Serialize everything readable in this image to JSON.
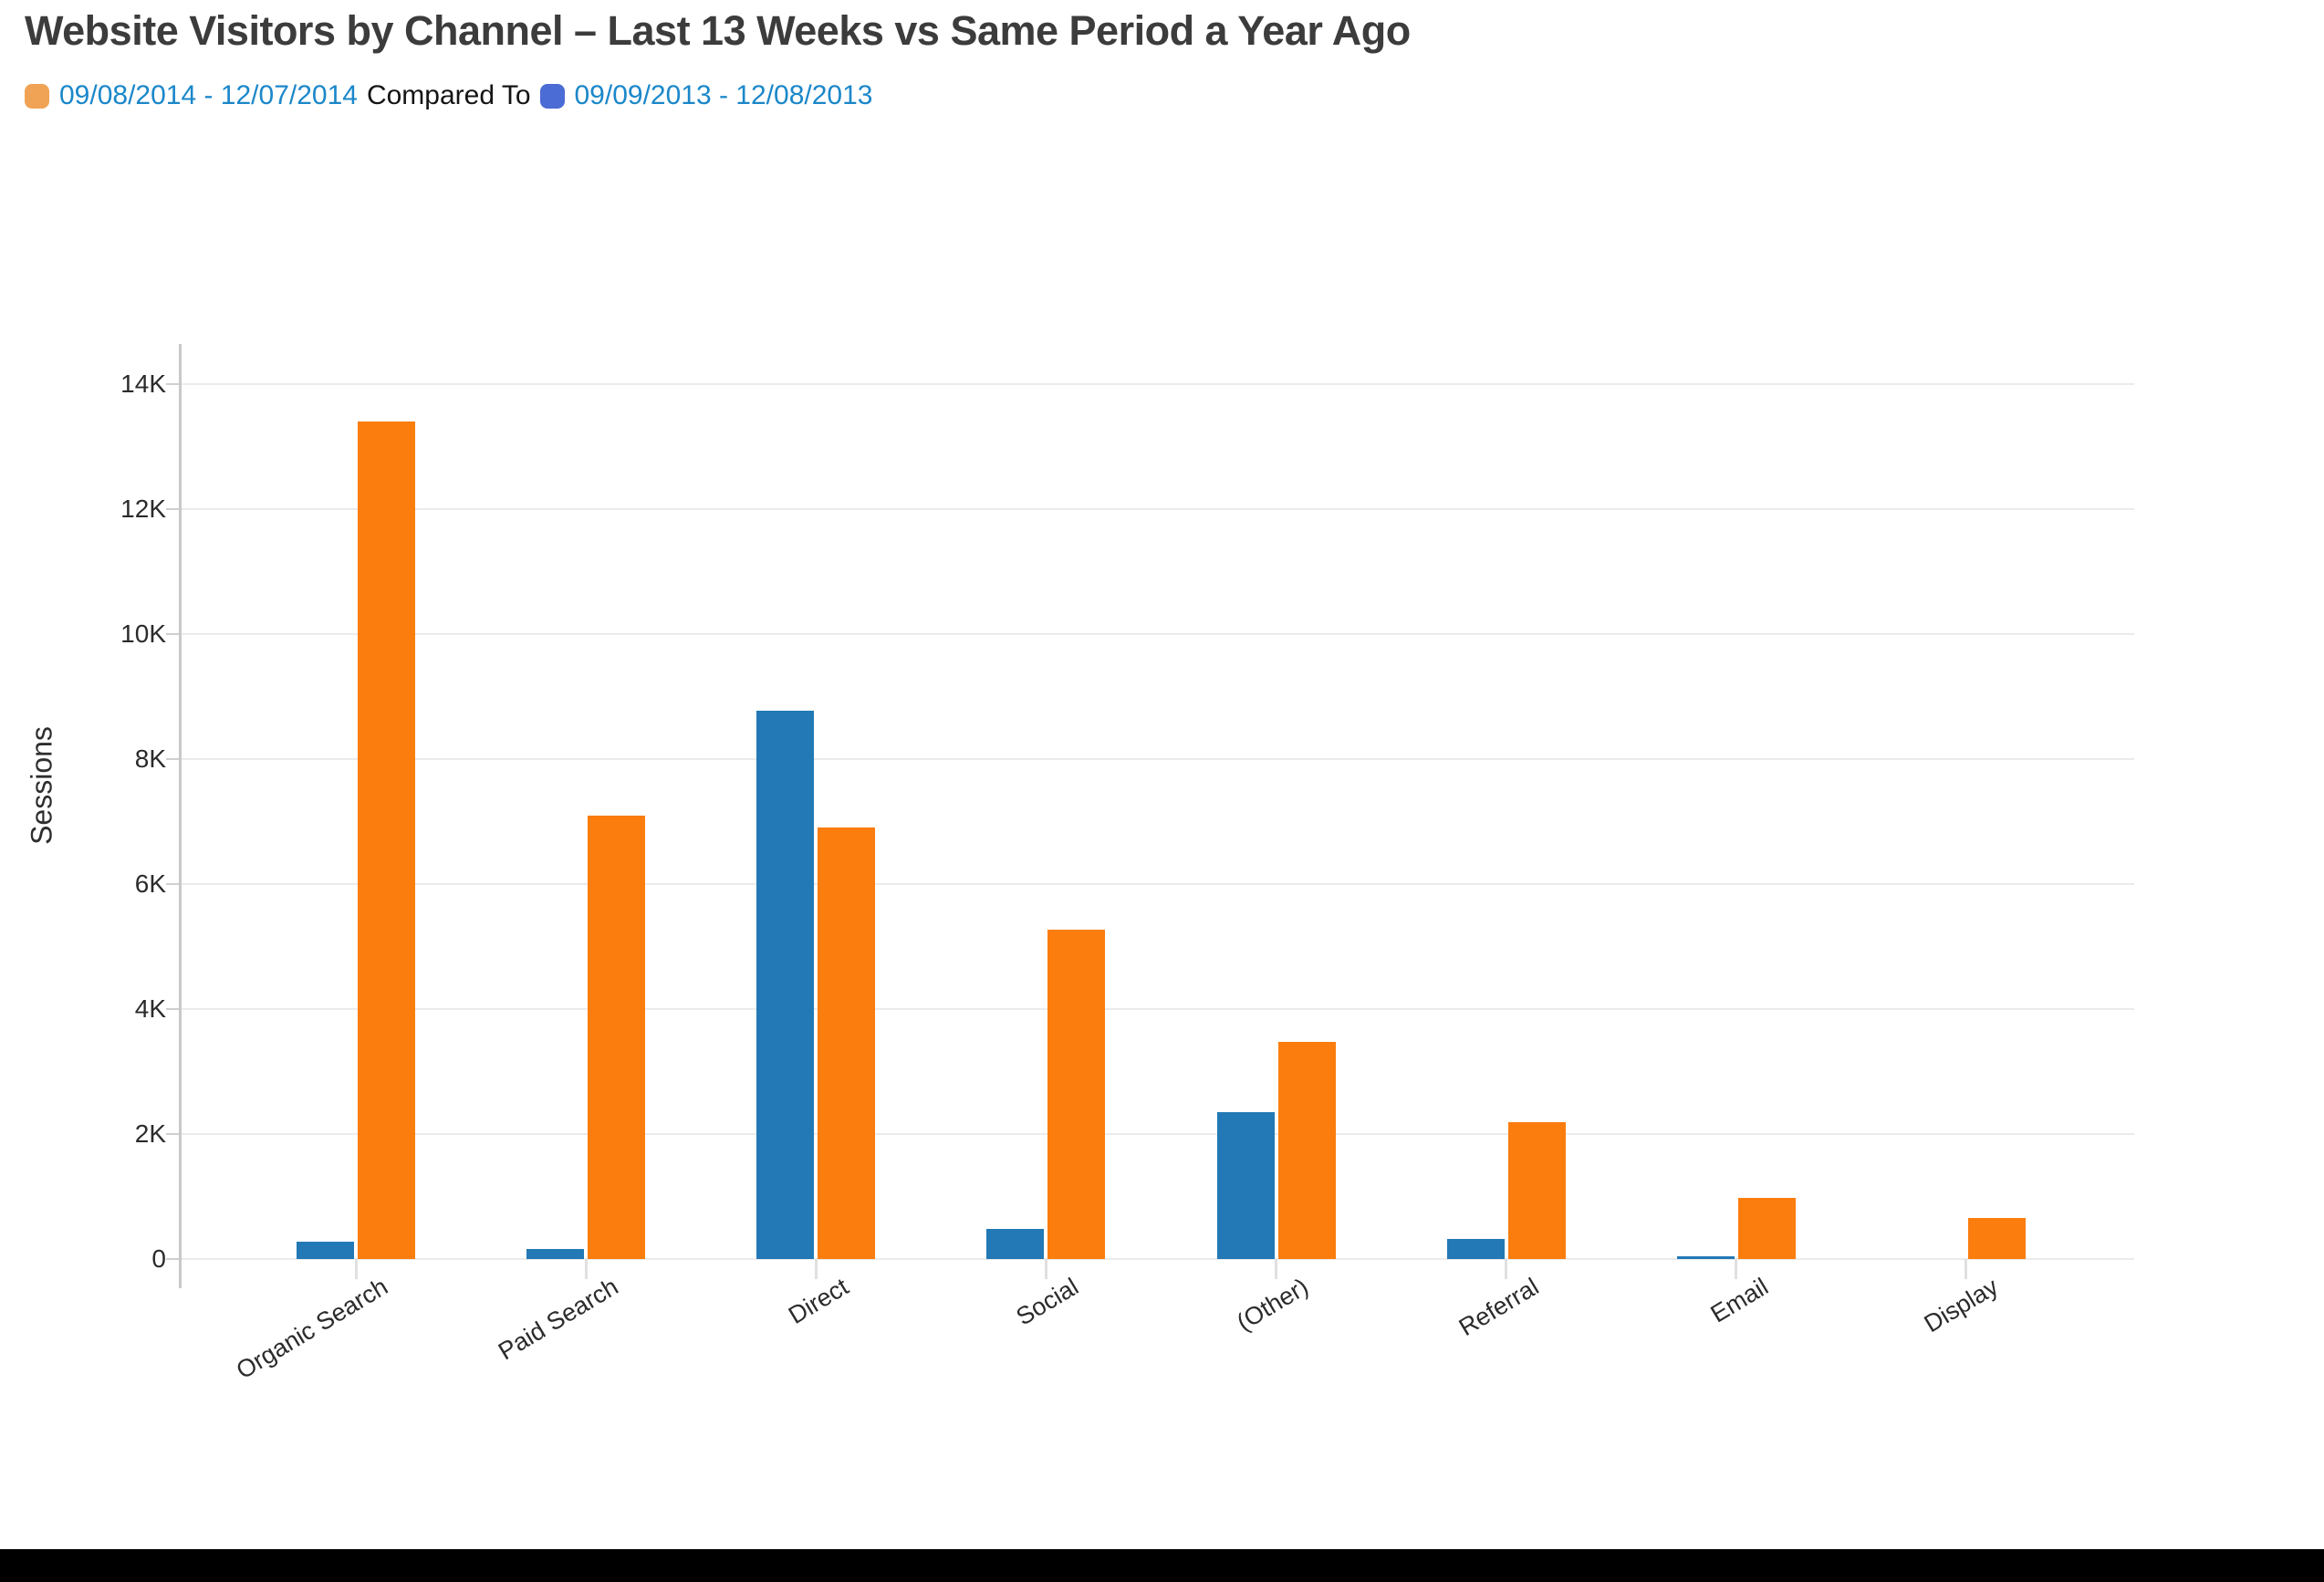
{
  "header": {
    "title": "Website Visitors by Channel – Last 13 Weeks vs Same Period a Year Ago",
    "legend": {
      "current_label": "09/08/2014 - 12/07/2014",
      "separator": "Compared To",
      "previous_label": "09/09/2013 - 12/08/2013"
    }
  },
  "colors": {
    "legend_swatch_current": "#f0a355",
    "legend_swatch_previous": "#4a6cd4",
    "legend_date_text": "#1b87c9",
    "current_bar": "#fa7d0e",
    "previous_bar": "#2279b5",
    "gridline": "#ebebeb",
    "axis_line": "#c9c9c9",
    "footer_bar": "#000000"
  },
  "chart_data": {
    "type": "bar",
    "title": "Website Visitors by Channel – Last 13 Weeks vs Same Period a Year Ago",
    "xlabel": "",
    "ylabel": "Sessions",
    "ylim": [
      0,
      14000
    ],
    "ytick_step": 2000,
    "ytick_labels": [
      "0",
      "2K",
      "4K",
      "6K",
      "8K",
      "10K",
      "12K",
      "14K"
    ],
    "grid": "horizontal",
    "legend_position": "top-left",
    "categories": [
      "Organic Search",
      "Paid Search",
      "Direct",
      "Social",
      "(Other)",
      "Referral",
      "Email",
      "Display"
    ],
    "series": [
      {
        "name": "09/09/2013 - 12/08/2013",
        "role": "previous",
        "color": "#2279b5",
        "values": [
          280,
          160,
          8780,
          480,
          2350,
          320,
          40,
          0
        ]
      },
      {
        "name": "09/08/2014 - 12/07/2014",
        "role": "current",
        "color": "#fa7d0e",
        "values": [
          13400,
          7100,
          6900,
          5270,
          3470,
          2190,
          980,
          650
        ]
      }
    ]
  }
}
